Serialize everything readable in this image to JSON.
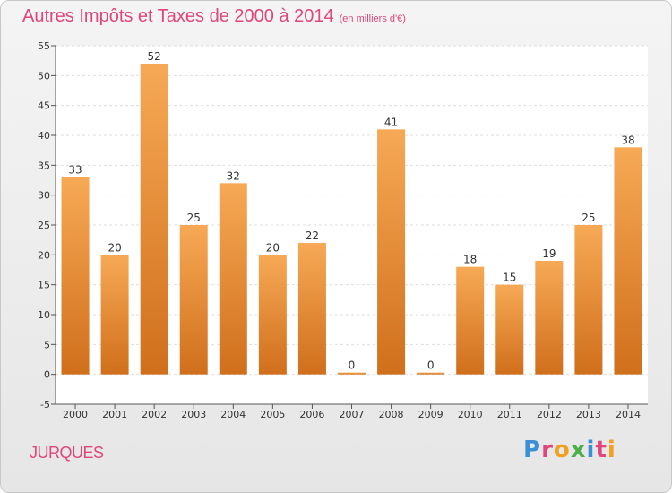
{
  "title": "Autres Impôts et Taxes de 2000 à 2014",
  "subtitle": "(en milliers d'€)",
  "commune": "JURQUES",
  "logo": {
    "text": "Proxiti",
    "letter_colors": [
      "#3b8fd6",
      "#e0457b",
      "#f0a023",
      "#4bb04a",
      "#3b8fd6",
      "#e0457b",
      "#f0a023"
    ]
  },
  "colors": {
    "title": "#e0457b",
    "bar_top": "#f7a955",
    "bar_bottom": "#d06f1c",
    "plot_bg": "#ffffff",
    "grid": "#dddddd"
  },
  "chart_data": {
    "type": "bar",
    "title": "Autres Impôts et Taxes de 2000 à 2014",
    "subtitle": "(en milliers d'€)",
    "categories": [
      "2000",
      "2001",
      "2002",
      "2003",
      "2004",
      "2005",
      "2006",
      "2007",
      "2008",
      "2009",
      "2010",
      "2011",
      "2012",
      "2013",
      "2014"
    ],
    "values": [
      33,
      20,
      52,
      25,
      32,
      20,
      22,
      0,
      41,
      0,
      18,
      15,
      19,
      25,
      38
    ],
    "ylim": [
      -5,
      55
    ],
    "yticks": [
      -5,
      0,
      5,
      10,
      15,
      20,
      25,
      30,
      35,
      40,
      45,
      50,
      55
    ],
    "grid": true,
    "legend": "none"
  }
}
